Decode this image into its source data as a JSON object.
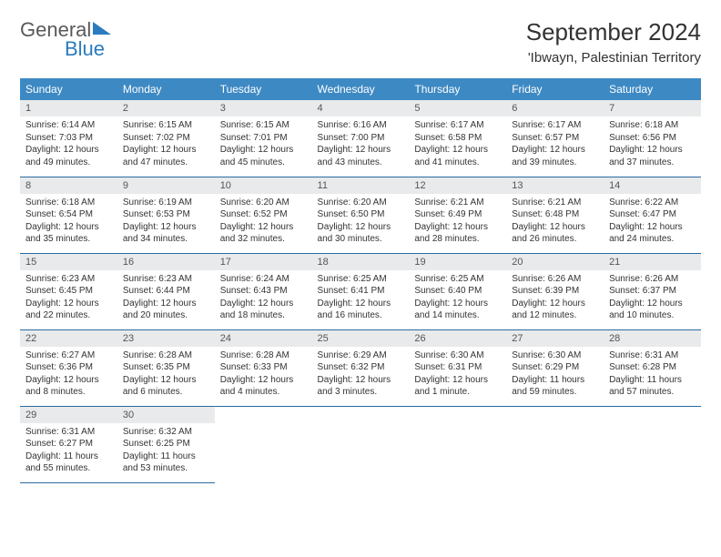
{
  "logo": {
    "text1": "General",
    "text2": "Blue",
    "icon_color": "#2a7bbf",
    "text1_color": "#58595b"
  },
  "title": "September 2024",
  "location": "'Ibwayn, Palestinian Territory",
  "header_bg": "#3d89c3",
  "header_fg": "#ffffff",
  "daynum_bg": "#e9eaec",
  "rule_color": "#2a6aa0",
  "weekdays": [
    "Sunday",
    "Monday",
    "Tuesday",
    "Wednesday",
    "Thursday",
    "Friday",
    "Saturday"
  ],
  "weeks": [
    [
      {
        "n": "1",
        "sr": "6:14 AM",
        "ss": "7:03 PM",
        "dl": "12 hours and 49 minutes."
      },
      {
        "n": "2",
        "sr": "6:15 AM",
        "ss": "7:02 PM",
        "dl": "12 hours and 47 minutes."
      },
      {
        "n": "3",
        "sr": "6:15 AM",
        "ss": "7:01 PM",
        "dl": "12 hours and 45 minutes."
      },
      {
        "n": "4",
        "sr": "6:16 AM",
        "ss": "7:00 PM",
        "dl": "12 hours and 43 minutes."
      },
      {
        "n": "5",
        "sr": "6:17 AM",
        "ss": "6:58 PM",
        "dl": "12 hours and 41 minutes."
      },
      {
        "n": "6",
        "sr": "6:17 AM",
        "ss": "6:57 PM",
        "dl": "12 hours and 39 minutes."
      },
      {
        "n": "7",
        "sr": "6:18 AM",
        "ss": "6:56 PM",
        "dl": "12 hours and 37 minutes."
      }
    ],
    [
      {
        "n": "8",
        "sr": "6:18 AM",
        "ss": "6:54 PM",
        "dl": "12 hours and 35 minutes."
      },
      {
        "n": "9",
        "sr": "6:19 AM",
        "ss": "6:53 PM",
        "dl": "12 hours and 34 minutes."
      },
      {
        "n": "10",
        "sr": "6:20 AM",
        "ss": "6:52 PM",
        "dl": "12 hours and 32 minutes."
      },
      {
        "n": "11",
        "sr": "6:20 AM",
        "ss": "6:50 PM",
        "dl": "12 hours and 30 minutes."
      },
      {
        "n": "12",
        "sr": "6:21 AM",
        "ss": "6:49 PM",
        "dl": "12 hours and 28 minutes."
      },
      {
        "n": "13",
        "sr": "6:21 AM",
        "ss": "6:48 PM",
        "dl": "12 hours and 26 minutes."
      },
      {
        "n": "14",
        "sr": "6:22 AM",
        "ss": "6:47 PM",
        "dl": "12 hours and 24 minutes."
      }
    ],
    [
      {
        "n": "15",
        "sr": "6:23 AM",
        "ss": "6:45 PM",
        "dl": "12 hours and 22 minutes."
      },
      {
        "n": "16",
        "sr": "6:23 AM",
        "ss": "6:44 PM",
        "dl": "12 hours and 20 minutes."
      },
      {
        "n": "17",
        "sr": "6:24 AM",
        "ss": "6:43 PM",
        "dl": "12 hours and 18 minutes."
      },
      {
        "n": "18",
        "sr": "6:25 AM",
        "ss": "6:41 PM",
        "dl": "12 hours and 16 minutes."
      },
      {
        "n": "19",
        "sr": "6:25 AM",
        "ss": "6:40 PM",
        "dl": "12 hours and 14 minutes."
      },
      {
        "n": "20",
        "sr": "6:26 AM",
        "ss": "6:39 PM",
        "dl": "12 hours and 12 minutes."
      },
      {
        "n": "21",
        "sr": "6:26 AM",
        "ss": "6:37 PM",
        "dl": "12 hours and 10 minutes."
      }
    ],
    [
      {
        "n": "22",
        "sr": "6:27 AM",
        "ss": "6:36 PM",
        "dl": "12 hours and 8 minutes."
      },
      {
        "n": "23",
        "sr": "6:28 AM",
        "ss": "6:35 PM",
        "dl": "12 hours and 6 minutes."
      },
      {
        "n": "24",
        "sr": "6:28 AM",
        "ss": "6:33 PM",
        "dl": "12 hours and 4 minutes."
      },
      {
        "n": "25",
        "sr": "6:29 AM",
        "ss": "6:32 PM",
        "dl": "12 hours and 3 minutes."
      },
      {
        "n": "26",
        "sr": "6:30 AM",
        "ss": "6:31 PM",
        "dl": "12 hours and 1 minute."
      },
      {
        "n": "27",
        "sr": "6:30 AM",
        "ss": "6:29 PM",
        "dl": "11 hours and 59 minutes."
      },
      {
        "n": "28",
        "sr": "6:31 AM",
        "ss": "6:28 PM",
        "dl": "11 hours and 57 minutes."
      }
    ],
    [
      {
        "n": "29",
        "sr": "6:31 AM",
        "ss": "6:27 PM",
        "dl": "11 hours and 55 minutes."
      },
      {
        "n": "30",
        "sr": "6:32 AM",
        "ss": "6:25 PM",
        "dl": "11 hours and 53 minutes."
      },
      null,
      null,
      null,
      null,
      null
    ]
  ],
  "labels": {
    "sunrise": "Sunrise:",
    "sunset": "Sunset:",
    "daylight": "Daylight:"
  }
}
